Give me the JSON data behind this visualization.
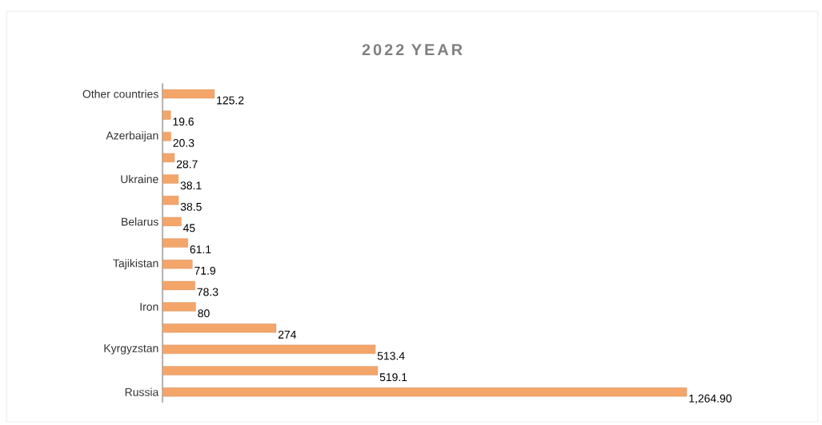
{
  "chart_data": {
    "type": "bar",
    "orientation": "horizontal",
    "title": "2022 YEAR",
    "categories": [
      "Other countries",
      null,
      "Azerbaijan",
      null,
      "Ukraine",
      null,
      "Belarus",
      null,
      "Tajikistan",
      null,
      "Iron",
      null,
      "Kyrgyzstan",
      null,
      "Russia"
    ],
    "values": [
      125.2,
      19.6,
      20.3,
      28.7,
      38.1,
      38.5,
      45,
      61.1,
      71.9,
      78.3,
      80,
      274,
      513.4,
      519.1,
      1264.9
    ],
    "value_labels": [
      "125.2",
      "19.6",
      "20.3",
      "28.7",
      "38.1",
      "38.5",
      "45",
      "61.1",
      "71.9",
      "78.3",
      "80",
      "274",
      "513.4",
      "519.1",
      "1,264.90"
    ],
    "color": "#f4a56a"
  }
}
